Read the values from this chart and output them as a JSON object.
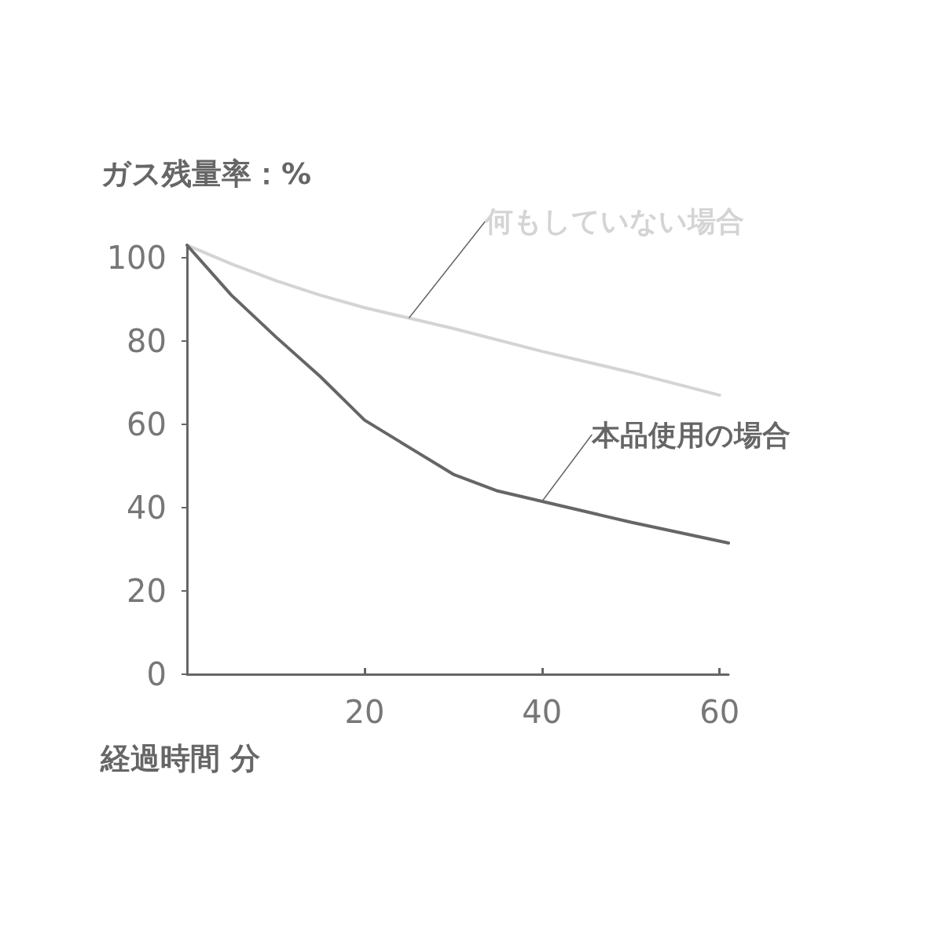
{
  "chart_data": {
    "type": "line",
    "xlabel": "経過時間 分",
    "ylabel": "ガス残量率：%",
    "xlim": [
      0,
      61
    ],
    "xticks": [
      20,
      40,
      60
    ],
    "ylim": [
      0,
      103
    ],
    "yticks": [
      0,
      20,
      40,
      60,
      80,
      100
    ],
    "grid": false,
    "legend": false,
    "marker": "none",
    "line_style": "solid",
    "series": [
      {
        "name": "何もしていない場合",
        "color": "#d4d4d4",
        "x": [
          0,
          5,
          10,
          15,
          20,
          25,
          30,
          40,
          50,
          60
        ],
        "values": [
          103,
          98.5,
          94.5,
          91,
          88,
          85.5,
          83,
          77.5,
          72.5,
          67
        ]
      },
      {
        "name": "本品使用の場合",
        "color": "#666666",
        "x": [
          0,
          5,
          10,
          15,
          20,
          25,
          30,
          35,
          40,
          50,
          61
        ],
        "values": [
          103,
          91,
          81,
          71.5,
          61,
          54.5,
          48,
          44,
          41.5,
          36.5,
          31.5
        ]
      }
    ]
  }
}
